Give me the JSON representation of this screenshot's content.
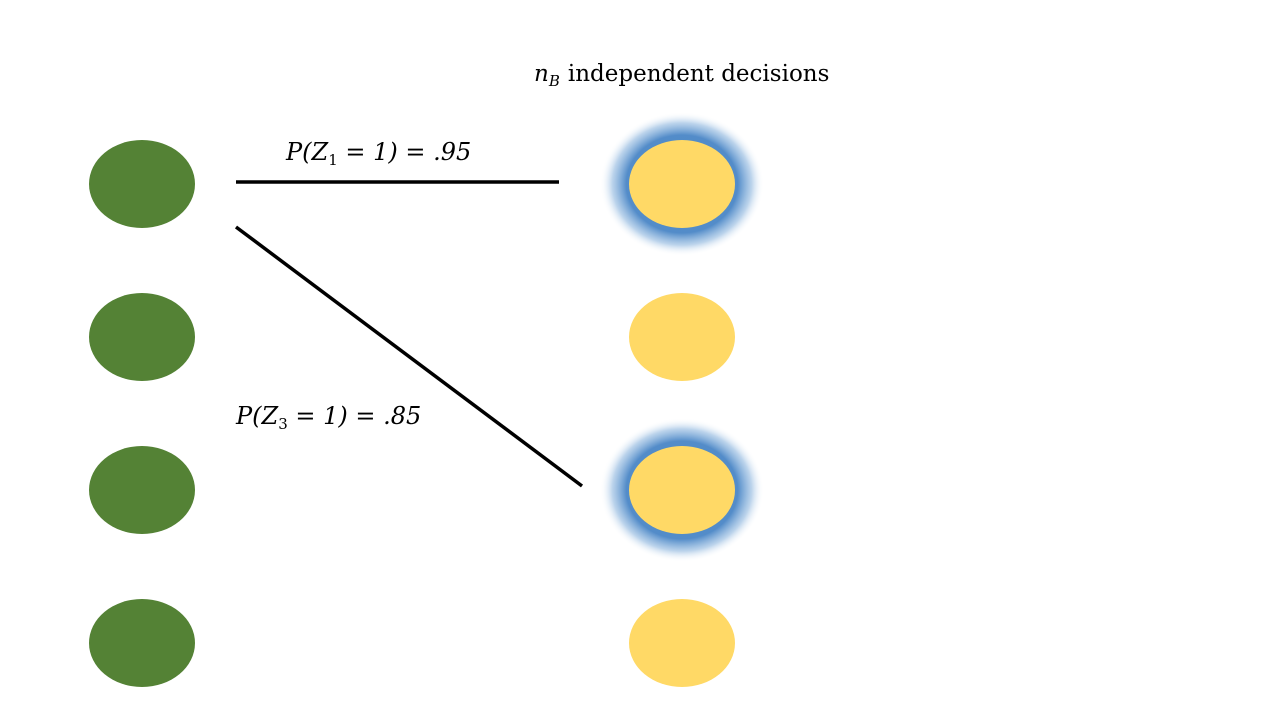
{
  "title": {
    "var": "n",
    "sub": "B",
    "text": "independent decisions"
  },
  "colors": {
    "left_node": "#548235",
    "right_node": "#FFD966",
    "glow": "#4A86C6",
    "edge": "#000000"
  },
  "edges": [
    {
      "label": {
        "prefix": "P(Z",
        "sub": "1",
        "suffix": " = 1) = .95"
      }
    },
    {
      "label": {
        "prefix": "P(Z",
        "sub": "3",
        "suffix": " = 1) = .85"
      }
    }
  ],
  "left_nodes": [
    {
      "index": 1
    },
    {
      "index": 2
    },
    {
      "index": 3
    },
    {
      "index": 4
    }
  ],
  "right_nodes": [
    {
      "index": 1,
      "highlighted": true
    },
    {
      "index": 2,
      "highlighted": false
    },
    {
      "index": 3,
      "highlighted": true
    },
    {
      "index": 4,
      "highlighted": false
    }
  ]
}
